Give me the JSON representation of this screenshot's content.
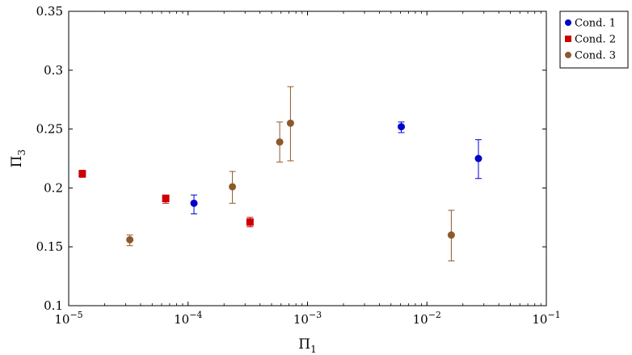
{
  "chart_data": {
    "type": "scatter",
    "xscale": "log",
    "xlim": [
      1e-05,
      0.1
    ],
    "ylim": [
      0.1,
      0.35
    ],
    "xlabel": "Π",
    "xlabel_sub": "1",
    "ylabel": "Π",
    "ylabel_sub": "3",
    "x_ticks": [
      {
        "value": 1e-05,
        "base": "10",
        "exp": "−5"
      },
      {
        "value": 0.0001,
        "base": "10",
        "exp": "−4"
      },
      {
        "value": 0.001,
        "base": "10",
        "exp": "−3"
      },
      {
        "value": 0.01,
        "base": "10",
        "exp": "−2"
      },
      {
        "value": 0.1,
        "base": "10",
        "exp": "−1"
      }
    ],
    "y_ticks": [
      {
        "value": 0.1,
        "label": "0.1"
      },
      {
        "value": 0.15,
        "label": "0.15"
      },
      {
        "value": 0.2,
        "label": "0.2"
      },
      {
        "value": 0.25,
        "label": "0.25"
      },
      {
        "value": 0.3,
        "label": "0.3"
      },
      {
        "value": 0.35,
        "label": "0.35"
      }
    ],
    "grid": false,
    "legend_position": "outside-top-right",
    "series": [
      {
        "name": "Cond. 1",
        "color": "#0000cc",
        "marker": "circle",
        "points": [
          {
            "x": 0.000112,
            "y": 0.187,
            "err_low": 0.178,
            "err_high": 0.194
          },
          {
            "x": 0.0061,
            "y": 0.252,
            "err_low": 0.247,
            "err_high": 0.256
          },
          {
            "x": 0.027,
            "y": 0.225,
            "err_low": 0.208,
            "err_high": 0.241
          }
        ]
      },
      {
        "name": "Cond. 2",
        "color": "#cc0000",
        "marker": "square",
        "points": [
          {
            "x": 1.3e-05,
            "y": 0.212,
            "err_low": 0.209,
            "err_high": 0.215
          },
          {
            "x": 6.5e-05,
            "y": 0.191,
            "err_low": 0.187,
            "err_high": 0.194
          },
          {
            "x": 0.00033,
            "y": 0.171,
            "err_low": 0.167,
            "err_high": 0.175
          }
        ]
      },
      {
        "name": "Cond. 3",
        "color": "#8b5a2b",
        "marker": "circle",
        "points": [
          {
            "x": 3.25e-05,
            "y": 0.156,
            "err_low": 0.151,
            "err_high": 0.16
          },
          {
            "x": 0.000235,
            "y": 0.201,
            "err_low": 0.187,
            "err_high": 0.214
          },
          {
            "x": 0.000585,
            "y": 0.239,
            "err_low": 0.222,
            "err_high": 0.256
          },
          {
            "x": 0.00072,
            "y": 0.255,
            "err_low": 0.223,
            "err_high": 0.286
          },
          {
            "x": 0.016,
            "y": 0.16,
            "err_low": 0.138,
            "err_high": 0.181
          }
        ]
      }
    ]
  }
}
